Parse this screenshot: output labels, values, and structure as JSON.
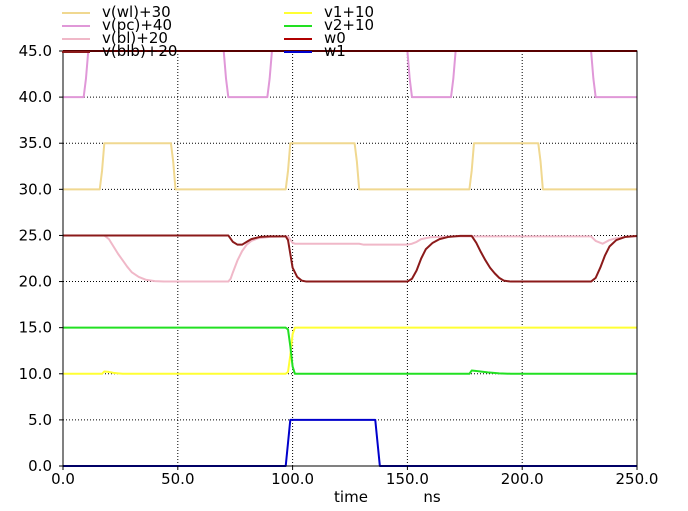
{
  "chart_data": {
    "type": "line",
    "xlabel": "time",
    "xunit": "ns",
    "xlim": [
      0,
      250
    ],
    "ylim": [
      0,
      45
    ],
    "xticks": [
      0,
      50,
      100,
      150,
      200,
      250
    ],
    "xtick_labels": [
      "0.0",
      "50.0",
      "100.0",
      "150.0",
      "200.0",
      "250.0"
    ],
    "yticks": [
      0,
      5,
      10,
      15,
      20,
      25,
      30,
      35,
      40,
      45
    ],
    "ytick_labels": [
      "0.0",
      "5.0",
      "10.0",
      "15.0",
      "20.0",
      "25.0",
      "30.0",
      "35.0",
      "40.0",
      "45.0"
    ],
    "grid": true,
    "legend_position": "top",
    "series": [
      {
        "name": "v(wl)+30",
        "color": "#f0d890",
        "x": [
          0,
          16,
          17,
          18,
          47,
          48,
          49,
          97,
          98,
          99,
          127,
          128,
          129,
          177,
          178,
          179,
          207,
          208,
          209,
          250
        ],
        "y": [
          30,
          30,
          32,
          35,
          35,
          33,
          30,
          30,
          32,
          35,
          35,
          33,
          30,
          30,
          32,
          35,
          35,
          33,
          30,
          30
        ]
      },
      {
        "name": "v(pc)+40",
        "color": "#e098d8",
        "x": [
          0,
          9,
          10,
          11,
          70,
          71,
          72,
          89,
          90,
          91,
          150,
          151,
          152,
          169,
          170,
          171,
          230,
          231,
          232,
          250
        ],
        "y": [
          40,
          40,
          42,
          45,
          45,
          42,
          40,
          40,
          42,
          45,
          45,
          42,
          40,
          40,
          42,
          45,
          45,
          42,
          40,
          40
        ]
      },
      {
        "name": "v(bl)+20",
        "color": "#f0b8c8",
        "x": [
          0,
          18,
          20,
          22,
          24,
          26,
          28,
          30,
          33,
          36,
          40,
          44,
          48,
          72,
          73,
          74,
          76,
          78,
          80,
          82,
          85,
          90,
          97,
          98,
          100,
          101,
          102,
          110,
          129,
          131,
          133,
          135,
          137,
          139,
          141,
          143,
          147,
          150,
          152,
          154,
          156,
          160,
          170,
          180,
          200,
          230,
          232,
          235,
          238,
          241,
          245,
          250
        ],
        "y": [
          25,
          25,
          24.6,
          23.8,
          23.0,
          22.3,
          21.6,
          21.0,
          20.5,
          20.2,
          20.05,
          20.0,
          20.0,
          20.0,
          20.3,
          21.0,
          22.3,
          23.3,
          24.0,
          24.4,
          24.7,
          24.85,
          24.9,
          24.9,
          24.2,
          24.1,
          24.1,
          24.1,
          24.1,
          24.0,
          24.0,
          24.0,
          24.0,
          24.0,
          24.0,
          24.0,
          24.0,
          24.0,
          24.1,
          24.3,
          24.6,
          24.8,
          24.9,
          24.9,
          24.9,
          24.9,
          24.4,
          24.1,
          24.5,
          24.7,
          24.85,
          24.9
        ]
      },
      {
        "name": "v(blb)+20",
        "color": "#8b1a1a",
        "x": [
          0,
          72,
          74,
          76,
          78,
          80,
          82,
          86,
          90,
          97,
          98,
          99,
          100,
          102,
          104,
          106,
          108,
          110,
          125,
          150,
          152,
          154,
          156,
          158,
          161,
          164,
          168,
          173,
          178,
          180,
          182,
          184,
          186,
          188,
          190,
          192,
          195,
          200,
          230,
          232,
          234,
          236,
          238,
          241,
          245,
          250
        ],
        "y": [
          25,
          25,
          24.3,
          24.0,
          24.0,
          24.3,
          24.6,
          24.85,
          24.9,
          24.9,
          24.5,
          23.0,
          21.5,
          20.5,
          20.1,
          20.0,
          20.0,
          20.0,
          20.0,
          20.0,
          20.3,
          21.2,
          22.5,
          23.5,
          24.2,
          24.6,
          24.85,
          24.95,
          24.95,
          24.2,
          23.2,
          22.3,
          21.5,
          20.9,
          20.4,
          20.1,
          20.0,
          20.0,
          20.0,
          20.4,
          21.5,
          22.8,
          23.8,
          24.5,
          24.85,
          24.95
        ]
      },
      {
        "name": "v1+10",
        "color": "#ffff33",
        "x": [
          0,
          17,
          18,
          20,
          22,
          24,
          26,
          97,
          98,
          99,
          100,
          101,
          102,
          250
        ],
        "y": [
          10,
          10,
          10.25,
          10.2,
          10.1,
          10.05,
          10,
          10,
          10.2,
          12.0,
          14.3,
          15,
          15,
          15
        ]
      },
      {
        "name": "v2+10",
        "color": "#22e022",
        "x": [
          0,
          97,
          98,
          99,
          100,
          101,
          102,
          110,
          177,
          178,
          180,
          185,
          190,
          195,
          250
        ],
        "y": [
          15,
          15,
          14.8,
          13.0,
          10.8,
          10.0,
          10.0,
          10.0,
          10.0,
          10.35,
          10.3,
          10.15,
          10.05,
          10.0,
          10.0
        ]
      },
      {
        "name": "w0",
        "color": "#b00000",
        "x": [
          0,
          250
        ],
        "y": [
          45,
          45
        ]
      },
      {
        "name": "w1",
        "color": "#0000cc",
        "x": [
          0,
          97,
          98,
          99,
          100,
          136,
          137,
          138,
          250
        ],
        "y": [
          0,
          0,
          2.5,
          5,
          5,
          5,
          2.5,
          0,
          0
        ]
      }
    ]
  }
}
